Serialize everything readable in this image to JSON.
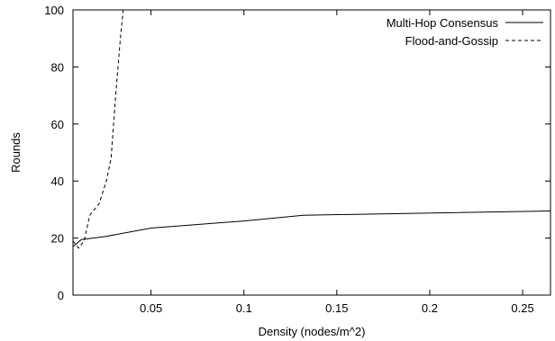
{
  "chart_data": {
    "type": "line",
    "title": "",
    "xlabel": "Density (nodes/m^2)",
    "ylabel": "Rounds",
    "xlim": [
      0.008,
      0.265
    ],
    "ylim": [
      0,
      100
    ],
    "xticks": [
      0.05,
      0.1,
      0.15,
      0.2,
      0.25
    ],
    "xtick_labels": [
      "0.05",
      "0.1",
      "0.15",
      "0.2",
      "0.25"
    ],
    "yticks": [
      0,
      20,
      40,
      60,
      80,
      100
    ],
    "ytick_labels": [
      "0",
      "20",
      "40",
      "60",
      "80",
      "100"
    ],
    "grid": false,
    "legend_position": "top-right",
    "series": [
      {
        "name": "Multi-Hop Consensus",
        "style": "solid",
        "color": "#000000",
        "points": [
          [
            0.008,
            17.0
          ],
          [
            0.0125,
            19.5
          ],
          [
            0.025,
            20.5
          ],
          [
            0.05,
            23.5
          ],
          [
            0.1,
            26.0
          ],
          [
            0.132,
            28.0
          ],
          [
            0.265,
            29.5
          ]
        ]
      },
      {
        "name": "Flood-and-Gossip",
        "style": "dashed",
        "color": "#000000",
        "points": [
          [
            0.008,
            19.0
          ],
          [
            0.011,
            16.5
          ],
          [
            0.014,
            19.0
          ],
          [
            0.017,
            28.0
          ],
          [
            0.022,
            32.0
          ],
          [
            0.026,
            40.0
          ],
          [
            0.0285,
            48.0
          ],
          [
            0.031,
            70.0
          ],
          [
            0.0335,
            90.0
          ],
          [
            0.035,
            100.0
          ]
        ]
      }
    ]
  }
}
